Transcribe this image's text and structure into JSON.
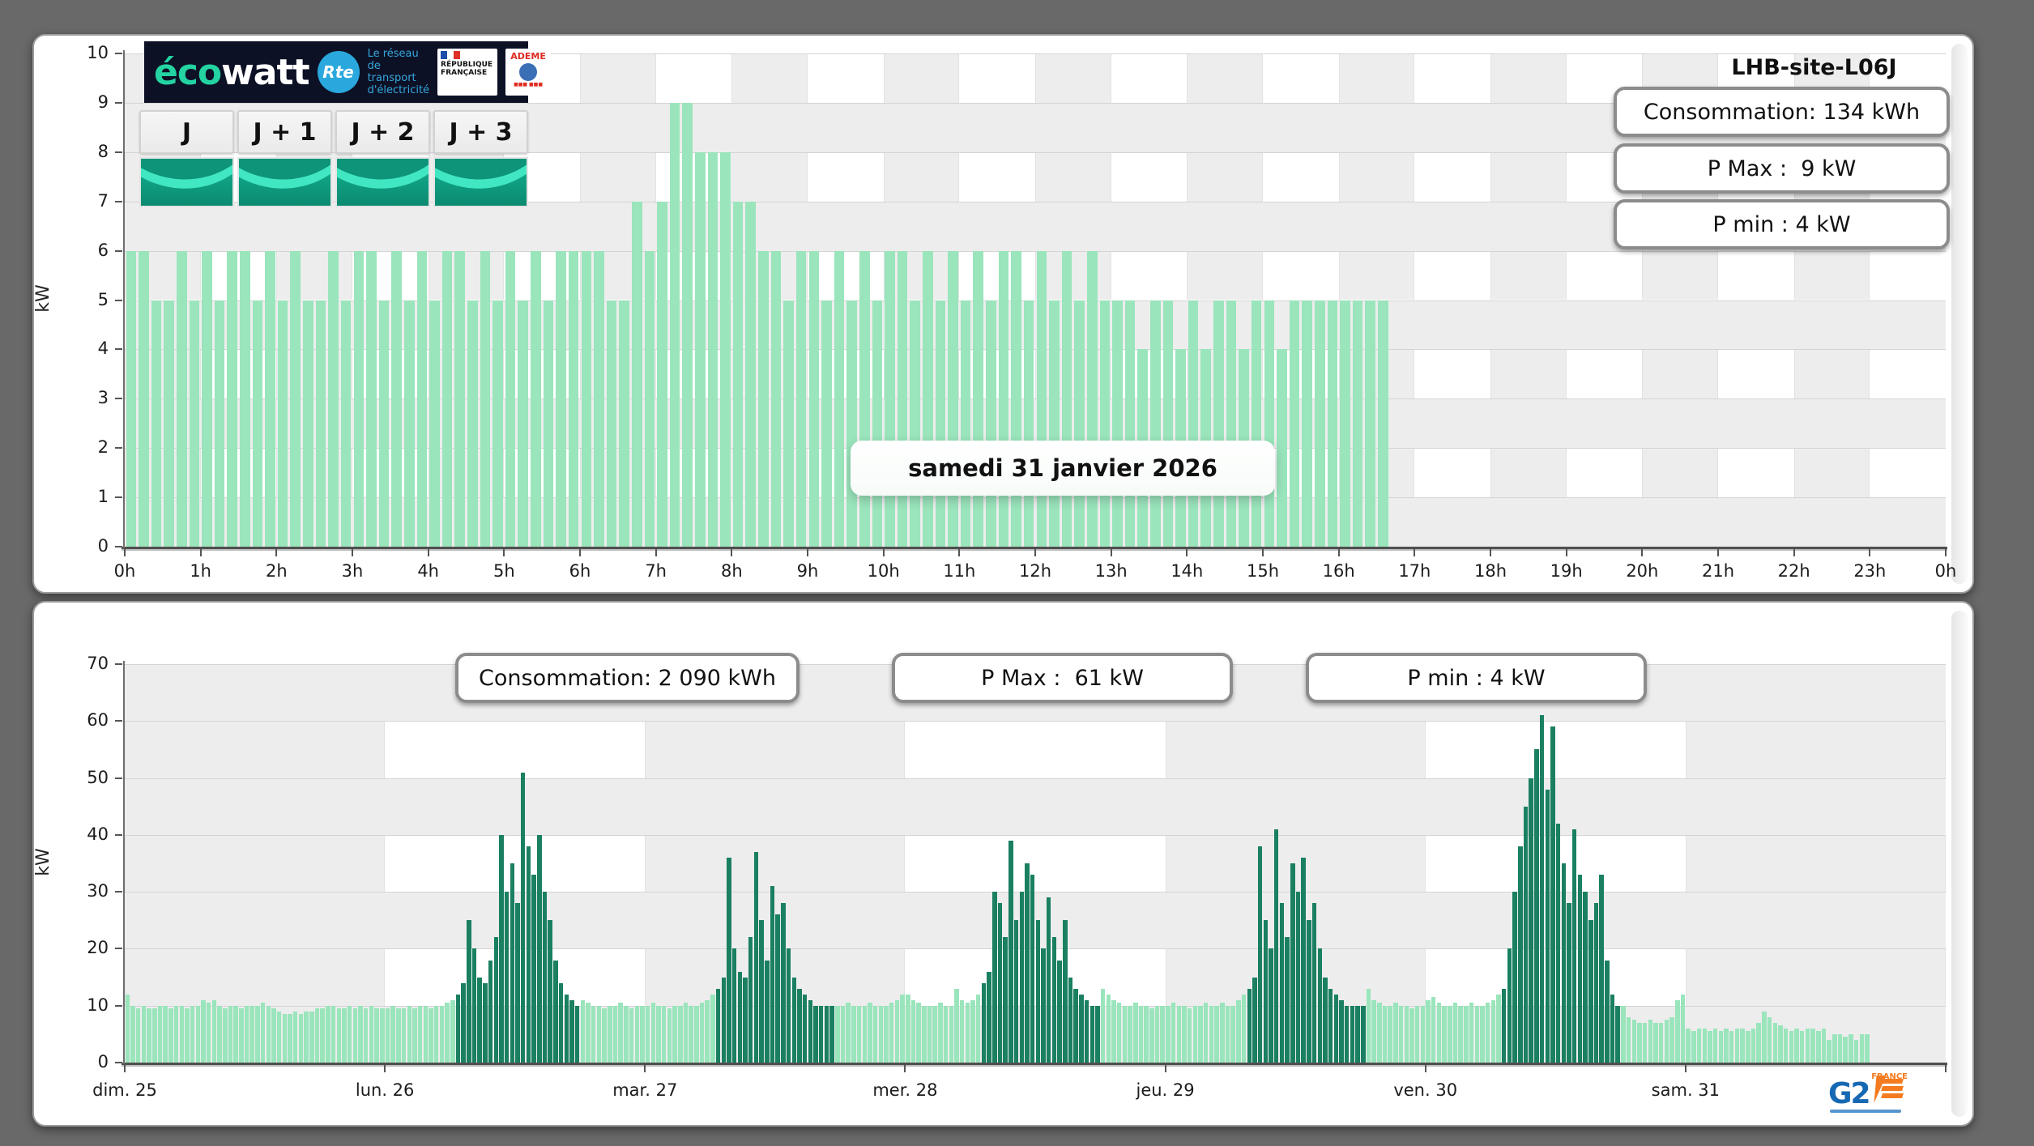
{
  "ecowatt": {
    "brand_eco": "éco",
    "brand_watt": "watt",
    "rte": "Rte",
    "rte_text": "Le réseau de transport d'électricité",
    "rf1": "RÉPUBLIQUE",
    "rf2": "FRANÇAISE",
    "ademe": "ADEME",
    "day_buttons": [
      "J",
      "J + 1",
      "J + 2",
      "J + 3"
    ]
  },
  "top_chart": {
    "site": "LHB-site-L06J",
    "stats": [
      "Consommation: 134 kWh",
      "P Max :  9 kW",
      "P min : 4 kW"
    ],
    "date_label": "samedi 31 janvier 2026",
    "ylabel": "kW"
  },
  "bottom_chart": {
    "stats": [
      "Consommation: 2 090 kWh",
      "P Max :  61 kW",
      "P min : 4 kW"
    ],
    "ylabel": "kW"
  },
  "g2e": {
    "g2": "G2",
    "france": "FRANCE"
  },
  "colors": {
    "bar_light": "#9ae5bc",
    "bar_dark": "#1a8061",
    "checker_gray": "#ededed",
    "page_bg": "#696969",
    "accent_teal": "#23d3a2",
    "rte_blue": "#2aa8dd",
    "g2e_blue": "#1668b3",
    "g2e_orange": "#f47b20"
  },
  "chart_data": [
    {
      "type": "bar",
      "title": "samedi 31 janvier 2026",
      "ylabel": "kW",
      "ylim": [
        0,
        10
      ],
      "yticks": [
        0,
        1,
        2,
        3,
        4,
        5,
        6,
        7,
        8,
        9,
        10
      ],
      "xticks": [
        "0h",
        "1h",
        "2h",
        "3h",
        "4h",
        "5h",
        "6h",
        "7h",
        "8h",
        "9h",
        "10h",
        "11h",
        "12h",
        "13h",
        "14h",
        "15h",
        "16h",
        "17h",
        "18h",
        "19h",
        "20h",
        "21h",
        "22h",
        "23h",
        "0h"
      ],
      "x_step_minutes": 10,
      "x_start_hour": 0,
      "grid": "checkerboard 1 kW x 1 h",
      "legend": "none",
      "values": [
        6,
        6,
        5,
        5,
        6,
        5,
        6,
        5,
        6,
        6,
        5,
        6,
        5,
        6,
        5,
        5,
        6,
        5,
        6,
        6,
        5,
        6,
        5,
        6,
        5,
        6,
        6,
        5,
        6,
        5,
        6,
        5,
        6,
        5,
        6,
        6,
        6,
        6,
        5,
        5,
        7,
        6,
        7,
        9,
        9,
        8,
        8,
        8,
        7,
        7,
        6,
        6,
        5,
        6,
        6,
        5,
        6,
        5,
        6,
        5,
        6,
        6,
        5,
        6,
        5,
        6,
        5,
        6,
        5,
        6,
        6,
        5,
        6,
        5,
        6,
        5,
        6,
        5,
        5,
        5,
        4,
        5,
        5,
        4,
        5,
        4,
        5,
        5,
        4,
        5,
        5,
        4,
        5,
        5,
        5,
        5,
        5,
        5,
        5,
        5
      ]
    },
    {
      "type": "bar",
      "title": "",
      "ylabel": "kW",
      "ylim": [
        0,
        70
      ],
      "yticks": [
        0,
        10,
        20,
        30,
        40,
        50,
        60,
        70
      ],
      "xticks": [
        "dim. 25",
        "lun. 26",
        "mar. 27",
        "mer. 28",
        "jeu. 29",
        "ven. 30",
        "sam. 31"
      ],
      "x_step_minutes": 30,
      "grid": "checkerboard 10 kW x 1 day",
      "legend": "none",
      "days": [
        {
          "label": "dim. 25",
          "dark": null,
          "values": [
            12,
            10,
            9.5,
            10,
            9.5,
            9.5,
            10,
            10,
            9.5,
            10,
            10,
            9.5,
            10,
            10,
            11,
            10.5,
            11,
            10,
            9.5,
            10,
            10,
            9.5,
            10,
            10,
            10,
            10.5,
            10,
            9.5,
            9,
            8.5,
            8.5,
            9,
            8.5,
            9,
            9,
            9.5,
            9.5,
            10,
            10,
            9.5,
            9.5,
            10,
            9.5,
            10,
            9.5,
            10,
            9.5,
            9.5
          ]
        },
        {
          "label": "lun. 26",
          "dark": [
            13,
            35
          ],
          "values": [
            9.5,
            10,
            9.5,
            9.5,
            10,
            9.5,
            10,
            10,
            9.5,
            10,
            10,
            10.5,
            11,
            12,
            14,
            25,
            20,
            15,
            14,
            18,
            22,
            40,
            30,
            35,
            28,
            51,
            38,
            33,
            40,
            30,
            25,
            18,
            14,
            12,
            11,
            10,
            11,
            10.5,
            10,
            10,
            9.5,
            10,
            10,
            10.5,
            10,
            9.5,
            10,
            10
          ]
        },
        {
          "label": "mar. 27",
          "dark": [
            13,
            34
          ],
          "values": [
            10,
            10.5,
            10,
            10,
            9.5,
            10,
            10,
            10.5,
            10,
            10,
            10.5,
            11,
            12,
            13,
            15,
            36,
            20,
            16,
            15,
            22,
            37,
            25,
            18,
            31,
            26,
            28,
            20,
            15,
            13,
            12,
            11,
            10,
            10,
            10,
            10,
            10,
            10,
            10.5,
            10,
            10,
            10,
            10.5,
            10,
            10,
            10,
            10.5,
            11,
            12
          ]
        },
        {
          "label": "mer. 28",
          "dark": [
            14,
            35
          ],
          "values": [
            12,
            11,
            10.5,
            10,
            10,
            10,
            10.5,
            10,
            10,
            13,
            11,
            10.5,
            11,
            12,
            14,
            16,
            30,
            28,
            22,
            39,
            25,
            30,
            35,
            33,
            25,
            20,
            29,
            22,
            18,
            25,
            15,
            13,
            12,
            11,
            10,
            10,
            13,
            12,
            11,
            10.5,
            10,
            10,
            10.5,
            10,
            10,
            9.5,
            10,
            10
          ]
        },
        {
          "label": "jeu. 29",
          "dark": [
            15,
            36
          ],
          "values": [
            10,
            10.5,
            10,
            10,
            9.5,
            10,
            10,
            10.5,
            10,
            10,
            10.5,
            10,
            10,
            11,
            12,
            13,
            15,
            38,
            25,
            20,
            41,
            28,
            22,
            35,
            30,
            36,
            25,
            28,
            20,
            15,
            13,
            12,
            11,
            10,
            10,
            10,
            10,
            13,
            11,
            10.5,
            10,
            10,
            10.5,
            10,
            10,
            9.5,
            10,
            10
          ]
        },
        {
          "label": "ven. 30",
          "dark": [
            14,
            35
          ],
          "values": [
            11,
            11.5,
            10.5,
            10,
            10,
            10.5,
            10,
            10,
            10.5,
            10,
            10,
            10.5,
            11,
            12,
            13,
            20,
            30,
            38,
            45,
            50,
            55,
            61,
            48,
            59,
            42,
            35,
            28,
            41,
            33,
            30,
            25,
            28,
            33,
            18,
            12,
            10,
            10,
            8,
            7.5,
            7,
            7,
            7.5,
            7,
            7,
            7.5,
            8,
            11,
            12
          ]
        },
        {
          "label": "sam. 31",
          "dark": null,
          "values": [
            6,
            5.5,
            6,
            6,
            5.5,
            6,
            5.5,
            6,
            5.5,
            6,
            6,
            5.5,
            6,
            7,
            9,
            8,
            7,
            6.5,
            6,
            5.5,
            6,
            5.5,
            6,
            6,
            5.5,
            6,
            4,
            5,
            5,
            4.5,
            5,
            4,
            5,
            5,
            null,
            null,
            null,
            null,
            null,
            null,
            null,
            null,
            null,
            null,
            null,
            null,
            null,
            null
          ]
        }
      ]
    }
  ]
}
